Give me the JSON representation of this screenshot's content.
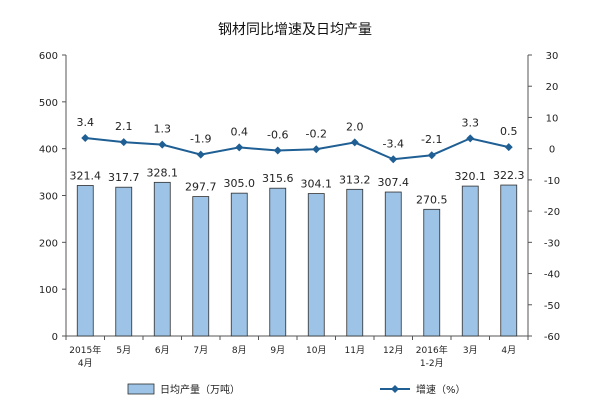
{
  "chart_data": {
    "type": "bar",
    "title": "钢材同比增速及日均产量",
    "categories": [
      [
        "2015年",
        "4月"
      ],
      [
        "5月"
      ],
      [
        "6月"
      ],
      [
        "7月"
      ],
      [
        "8月"
      ],
      [
        "9月"
      ],
      [
        "10月"
      ],
      [
        "11月"
      ],
      [
        "12月"
      ],
      [
        "2016年",
        "1-2月"
      ],
      [
        "3月"
      ],
      [
        "4月"
      ]
    ],
    "series": [
      {
        "name": "日均产量（万吨）",
        "type": "bar",
        "axis": "left",
        "values": [
          321.4,
          317.7,
          328.1,
          297.7,
          305.0,
          315.6,
          304.1,
          313.2,
          307.4,
          270.5,
          320.1,
          322.3
        ],
        "labels": [
          "321.4",
          "317.7",
          "328.1",
          "297.7",
          "305.0",
          "315.6",
          "304.1",
          "313.2",
          "307.4",
          "270.5",
          "320.1",
          "322.3"
        ],
        "color": "#9dc3e6"
      },
      {
        "name": "增速（%）",
        "type": "line",
        "axis": "right",
        "values": [
          3.4,
          2.1,
          1.3,
          -1.9,
          0.4,
          -0.6,
          -0.2,
          2.0,
          -3.4,
          -2.1,
          3.3,
          0.5
        ],
        "labels": [
          "3.4",
          "2.1",
          "1.3",
          "-1.9",
          "0.4",
          "-0.6",
          "-0.2",
          "2.0",
          "-3.4",
          "-2.1",
          "3.3",
          "0.5"
        ],
        "color": "#1f5f94"
      }
    ],
    "y_left": {
      "lim": [
        0,
        600
      ],
      "ticks": [
        "0",
        "100",
        "200",
        "300",
        "400",
        "500",
        "600"
      ]
    },
    "y_right": {
      "lim": [
        -60,
        30
      ],
      "ticks": [
        "-60",
        "-50",
        "-40",
        "-30",
        "-20",
        "-10",
        "0",
        "10",
        "20",
        "30"
      ]
    },
    "grid": false,
    "legend": "bottom"
  }
}
